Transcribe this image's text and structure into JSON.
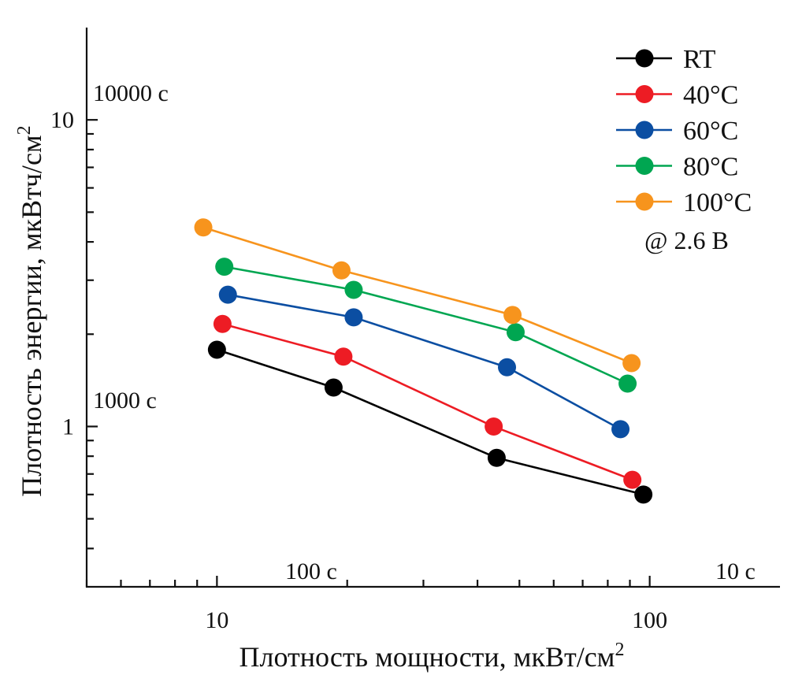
{
  "chart_data": {
    "type": "line",
    "title": "",
    "xlabel": "Плотность мощности, мкВт/см",
    "xlabel_sup": "2",
    "ylabel": "Плотность энергии, мкВтч/см",
    "ylabel_sup": "2",
    "xscale": "log",
    "yscale": "log",
    "xlim": [
      5,
      200
    ],
    "ylim": [
      0.3,
      20
    ],
    "x_major_ticks": [
      10,
      100
    ],
    "x_minor_ticks": [
      5,
      6,
      7,
      8,
      9,
      20,
      30,
      40,
      50,
      60,
      70,
      80,
      90
    ],
    "y_major_ticks": [
      1,
      10
    ],
    "y_minor_ticks": [
      0.4,
      0.5,
      0.6,
      0.7,
      0.8,
      0.9,
      2,
      3,
      4,
      5,
      6,
      7,
      8,
      9
    ],
    "x_tick_labels": [
      "10",
      "100"
    ],
    "y_tick_labels": [
      "1",
      "10"
    ],
    "grid": false,
    "legend_position": "top-right",
    "legend_note": "@ 2.6 B",
    "time_annotations": [
      {
        "text": "10000 c",
        "position": "upper-left"
      },
      {
        "text": "1000 c",
        "position": "left-middle"
      },
      {
        "text": "100 c",
        "position": "bottom-left"
      },
      {
        "text": "10 c",
        "position": "bottom-right"
      }
    ],
    "series": [
      {
        "name": "RT",
        "color": "#000000",
        "x": [
          10.0,
          18.6,
          44.3,
          96.7
        ],
        "y": [
          1.78,
          1.34,
          0.79,
          0.6
        ]
      },
      {
        "name": "40°C",
        "color": "#ed1c24",
        "x": [
          10.3,
          19.6,
          43.6,
          91.2
        ],
        "y": [
          2.16,
          1.69,
          1.0,
          0.67
        ]
      },
      {
        "name": "60°C",
        "color": "#0b4ea2",
        "x": [
          10.6,
          20.7,
          46.8,
          85.6
        ],
        "y": [
          2.69,
          2.27,
          1.56,
          0.98
        ]
      },
      {
        "name": "80°C",
        "color": "#00a651",
        "x": [
          10.4,
          20.7,
          49.0,
          88.9
        ],
        "y": [
          3.32,
          2.79,
          2.03,
          1.38
        ]
      },
      {
        "name": "100°C",
        "color": "#f7941d",
        "x": [
          9.3,
          19.4,
          48.2,
          90.8
        ],
        "y": [
          4.46,
          3.23,
          2.31,
          1.61
        ]
      }
    ]
  }
}
